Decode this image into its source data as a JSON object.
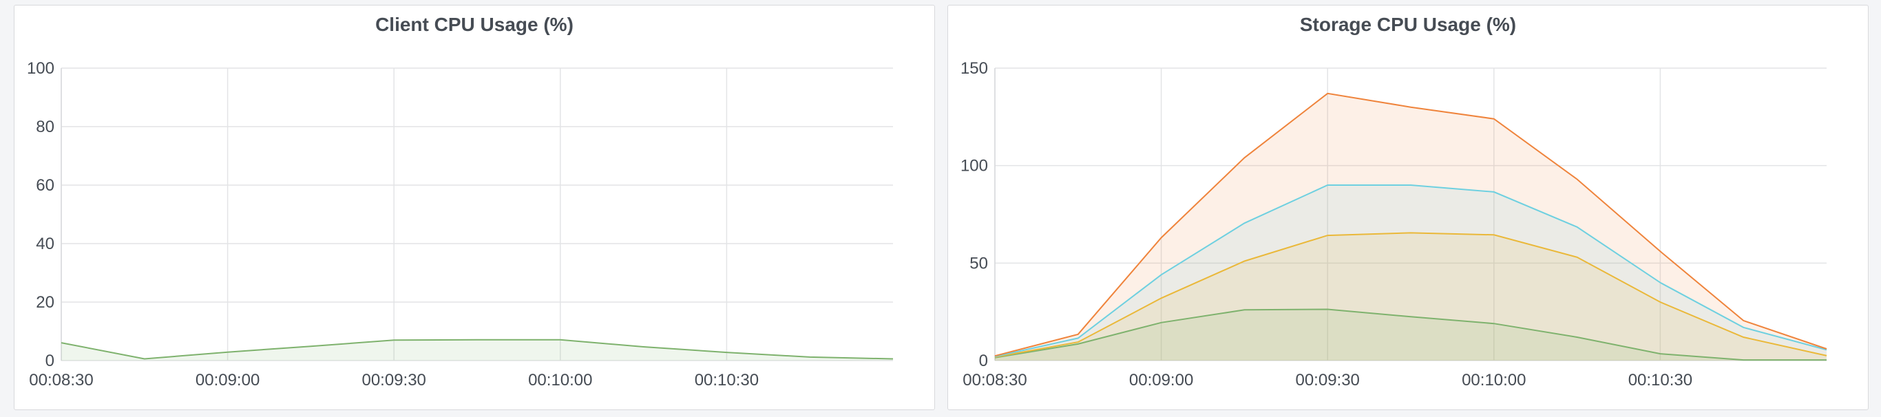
{
  "chart_data": [
    {
      "type": "area",
      "title": "Client CPU Usage (%)",
      "xlabel": "",
      "ylabel": "",
      "x": [
        "00:08:30",
        "00:08:45",
        "00:09:00",
        "00:09:15",
        "00:09:30",
        "00:09:45",
        "00:10:00",
        "00:10:15",
        "00:10:30",
        "00:10:45",
        "00:11:00"
      ],
      "x_ticks": [
        "00:08:30",
        "00:09:00",
        "00:09:30",
        "00:10:00",
        "00:10:30"
      ],
      "y_ticks": [
        0,
        20,
        40,
        60,
        80,
        100
      ],
      "ylim": [
        0,
        100
      ],
      "grid": true,
      "legend": "none",
      "series": [
        {
          "color": "#7eb26d",
          "values": [
            6.1,
            0.6,
            2.9,
            4.9,
            7.0,
            7.1,
            7.1,
            4.7,
            2.8,
            1.2,
            0.6
          ]
        }
      ]
    },
    {
      "type": "area",
      "title": "Storage CPU Usage (%)",
      "xlabel": "",
      "ylabel": "",
      "x": [
        "00:08:30",
        "00:08:45",
        "00:09:00",
        "00:09:15",
        "00:09:30",
        "00:09:45",
        "00:10:00",
        "00:10:15",
        "00:10:30",
        "00:10:45",
        "00:11:00"
      ],
      "x_ticks": [
        "00:08:30",
        "00:09:00",
        "00:09:30",
        "00:10:00",
        "00:10:30"
      ],
      "y_ticks": [
        0,
        50,
        100,
        150
      ],
      "ylim": [
        0,
        150
      ],
      "grid": true,
      "legend": "none",
      "stacked": true,
      "series": [
        {
          "color": "#7eb26d",
          "values": [
            1.5,
            8.5,
            19.5,
            26,
            26.3,
            22.5,
            19,
            12,
            3.5,
            0.3,
            0.3
          ]
        },
        {
          "color": "#eab839",
          "values": [
            1.8,
            9.5,
            32,
            51,
            64.2,
            65.5,
            64.5,
            53,
            30,
            12,
            2.5
          ]
        },
        {
          "color": "#6ed0e0",
          "values": [
            2.1,
            11.5,
            44,
            70.5,
            90,
            90,
            86.5,
            68.5,
            40,
            17,
            5.5
          ]
        },
        {
          "color": "#ef843c",
          "values": [
            2.4,
            13.5,
            63,
            104,
            137,
            130,
            124,
            93,
            56,
            20.5,
            6
          ]
        }
      ]
    }
  ]
}
